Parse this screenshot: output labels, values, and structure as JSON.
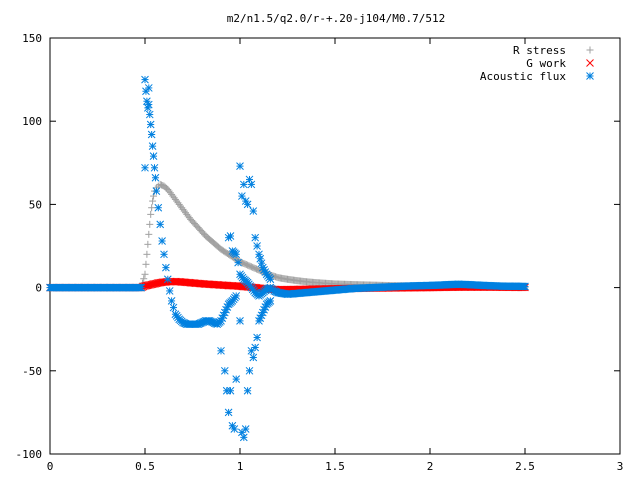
{
  "chart_data": {
    "type": "scatter",
    "title": "m2/n1.5/q2.0/r-+.20-j104/M0.7/512",
    "xlabel": "",
    "ylabel": "",
    "xlim": [
      0,
      3
    ],
    "ylim": [
      -100,
      150
    ],
    "xticks": [
      0,
      0.5,
      1,
      1.5,
      2,
      2.5,
      3
    ],
    "xtick_labels": [
      "0",
      "0.5",
      "1",
      "1.5",
      "2",
      "2.5",
      "3"
    ],
    "yticks": [
      -100,
      -50,
      0,
      50,
      100,
      150
    ],
    "ytick_labels": [
      "-100",
      "-50",
      "0",
      "50",
      "100",
      "150"
    ],
    "grid": false,
    "legend_position": "top-right",
    "series": [
      {
        "name": "R stress",
        "marker": "plus",
        "color": "#a0a0a0",
        "points": [
          [
            0.0,
            0
          ],
          [
            0.1,
            0
          ],
          [
            0.2,
            0
          ],
          [
            0.3,
            0
          ],
          [
            0.4,
            0
          ],
          [
            0.48,
            0
          ],
          [
            0.5,
            8
          ],
          [
            0.505,
            14
          ],
          [
            0.51,
            20
          ],
          [
            0.515,
            26
          ],
          [
            0.52,
            32
          ],
          [
            0.525,
            38
          ],
          [
            0.53,
            44
          ],
          [
            0.535,
            48
          ],
          [
            0.54,
            52
          ],
          [
            0.545,
            55
          ],
          [
            0.55,
            58
          ],
          [
            0.56,
            60
          ],
          [
            0.57,
            61
          ],
          [
            0.58,
            62
          ],
          [
            0.6,
            61
          ],
          [
            0.62,
            59
          ],
          [
            0.64,
            56
          ],
          [
            0.66,
            53
          ],
          [
            0.68,
            50
          ],
          [
            0.7,
            47
          ],
          [
            0.72,
            44
          ],
          [
            0.74,
            41
          ],
          [
            0.76,
            38.5
          ],
          [
            0.78,
            36
          ],
          [
            0.8,
            33.5
          ],
          [
            0.82,
            31
          ],
          [
            0.84,
            29
          ],
          [
            0.86,
            27
          ],
          [
            0.88,
            25
          ],
          [
            0.9,
            23
          ],
          [
            0.92,
            21.5
          ],
          [
            0.94,
            20
          ],
          [
            0.96,
            18.5
          ],
          [
            0.98,
            17
          ],
          [
            1.0,
            15.5
          ],
          [
            1.02,
            14.5
          ],
          [
            1.04,
            13.5
          ],
          [
            1.06,
            12.5
          ],
          [
            1.08,
            11.5
          ],
          [
            1.1,
            10.5
          ],
          [
            1.12,
            9.5
          ],
          [
            1.14,
            8.5
          ],
          [
            1.16,
            7.5
          ],
          [
            1.18,
            6.8
          ],
          [
            1.2,
            6
          ],
          [
            1.25,
            5
          ],
          [
            1.3,
            4.2
          ],
          [
            1.35,
            3.5
          ],
          [
            1.4,
            3
          ],
          [
            1.45,
            2.6
          ],
          [
            1.5,
            2.2
          ],
          [
            1.6,
            1.8
          ],
          [
            1.7,
            1.5
          ],
          [
            1.8,
            1.2
          ],
          [
            1.9,
            1
          ],
          [
            2.0,
            0.8
          ],
          [
            2.1,
            0.6
          ],
          [
            2.2,
            0.5
          ],
          [
            2.3,
            0.4
          ],
          [
            2.4,
            0.3
          ],
          [
            2.5,
            0.2
          ]
        ]
      },
      {
        "name": "G work",
        "marker": "cross",
        "color": "#ff0000",
        "points": [
          [
            0.0,
            0
          ],
          [
            0.1,
            0
          ],
          [
            0.2,
            0
          ],
          [
            0.3,
            0
          ],
          [
            0.4,
            0
          ],
          [
            0.48,
            0
          ],
          [
            0.5,
            1
          ],
          [
            0.52,
            1.5
          ],
          [
            0.54,
            2
          ],
          [
            0.56,
            2.5
          ],
          [
            0.58,
            3
          ],
          [
            0.6,
            3.3
          ],
          [
            0.62,
            3.5
          ],
          [
            0.64,
            3.6
          ],
          [
            0.66,
            3.6
          ],
          [
            0.68,
            3.5
          ],
          [
            0.7,
            3.3
          ],
          [
            0.72,
            3.1
          ],
          [
            0.74,
            2.9
          ],
          [
            0.76,
            2.7
          ],
          [
            0.78,
            2.5
          ],
          [
            0.8,
            2.3
          ],
          [
            0.82,
            2.1
          ],
          [
            0.84,
            2
          ],
          [
            0.86,
            1.8
          ],
          [
            0.88,
            1.7
          ],
          [
            0.9,
            1.5
          ],
          [
            0.92,
            1.4
          ],
          [
            0.94,
            1.2
          ],
          [
            0.96,
            1.1
          ],
          [
            0.98,
            1
          ],
          [
            1.0,
            0.8
          ],
          [
            1.02,
            0.6
          ],
          [
            1.04,
            0.4
          ],
          [
            1.06,
            0.2
          ],
          [
            1.08,
            0
          ],
          [
            1.1,
            -0.3
          ],
          [
            1.12,
            -0.6
          ],
          [
            1.14,
            -0.8
          ],
          [
            1.16,
            -1
          ],
          [
            1.18,
            -1.1
          ],
          [
            1.2,
            -1.2
          ],
          [
            1.25,
            -1.2
          ],
          [
            1.3,
            -1.1
          ],
          [
            1.35,
            -1
          ],
          [
            1.4,
            -0.9
          ],
          [
            1.45,
            -0.8
          ],
          [
            1.5,
            -0.7
          ],
          [
            1.55,
            -0.6
          ],
          [
            1.6,
            -0.5
          ],
          [
            1.65,
            -0.4
          ],
          [
            1.7,
            -0.3
          ],
          [
            1.8,
            -0.2
          ],
          [
            1.9,
            -0.1
          ],
          [
            2.0,
            0
          ],
          [
            2.1,
            0.2
          ],
          [
            2.2,
            0.3
          ],
          [
            2.3,
            0.3
          ],
          [
            2.4,
            0.2
          ],
          [
            2.5,
            0.1
          ]
        ]
      },
      {
        "name": "Acoustic flux",
        "marker": "star",
        "color": "#0080e0",
        "points": [
          [
            0.0,
            0
          ],
          [
            0.1,
            0
          ],
          [
            0.2,
            0
          ],
          [
            0.3,
            0
          ],
          [
            0.4,
            0
          ],
          [
            0.48,
            0
          ],
          [
            0.5,
            125
          ],
          [
            0.505,
            118
          ],
          [
            0.51,
            112
          ],
          [
            0.515,
            108
          ],
          [
            0.52,
            120
          ],
          [
            0.525,
            104
          ],
          [
            0.53,
            98
          ],
          [
            0.535,
            92
          ],
          [
            0.54,
            85
          ],
          [
            0.545,
            79
          ],
          [
            0.55,
            72
          ],
          [
            0.555,
            66
          ],
          [
            0.56,
            58
          ],
          [
            0.57,
            48
          ],
          [
            0.58,
            38
          ],
          [
            0.59,
            28
          ],
          [
            0.6,
            20
          ],
          [
            0.61,
            12
          ],
          [
            0.62,
            5
          ],
          [
            0.63,
            -2
          ],
          [
            0.64,
            -8
          ],
          [
            0.65,
            -12
          ],
          [
            0.66,
            -16
          ],
          [
            0.68,
            -19
          ],
          [
            0.7,
            -21
          ],
          [
            0.72,
            -22
          ],
          [
            0.74,
            -22
          ],
          [
            0.76,
            -22
          ],
          [
            0.78,
            -22
          ],
          [
            0.8,
            -21
          ],
          [
            0.82,
            -20
          ],
          [
            0.84,
            -20
          ],
          [
            0.86,
            -21
          ],
          [
            0.88,
            -22
          ],
          [
            0.9,
            -20
          ],
          [
            0.92,
            -15
          ],
          [
            0.94,
            -10
          ],
          [
            0.96,
            -8
          ],
          [
            0.98,
            -5
          ],
          [
            0.5,
            72
          ],
          [
            0.52,
            110
          ],
          [
            0.9,
            -38
          ],
          [
            0.92,
            -50
          ],
          [
            0.93,
            -62
          ],
          [
            0.94,
            -75
          ],
          [
            0.95,
            -62
          ],
          [
            0.96,
            -83
          ],
          [
            0.97,
            -85
          ],
          [
            0.98,
            -55
          ],
          [
            0.94,
            30
          ],
          [
            0.95,
            31
          ],
          [
            0.96,
            22
          ],
          [
            0.98,
            20
          ],
          [
            0.99,
            15
          ],
          [
            1.0,
            -20
          ],
          [
            1.01,
            -87
          ],
          [
            1.02,
            -90
          ],
          [
            1.03,
            -85
          ],
          [
            1.04,
            -62
          ],
          [
            1.05,
            -50
          ],
          [
            1.06,
            -38
          ],
          [
            1.07,
            -42
          ],
          [
            1.08,
            -36
          ],
          [
            1.09,
            -30
          ],
          [
            1.1,
            -20
          ],
          [
            1.12,
            -15
          ],
          [
            1.14,
            -10
          ],
          [
            1.16,
            -8
          ],
          [
            1.0,
            73
          ],
          [
            1.01,
            55
          ],
          [
            1.02,
            62
          ],
          [
            1.03,
            52
          ],
          [
            1.04,
            50
          ],
          [
            1.05,
            65
          ],
          [
            1.06,
            62
          ],
          [
            1.07,
            46
          ],
          [
            1.08,
            30
          ],
          [
            1.09,
            25
          ],
          [
            1.1,
            20
          ],
          [
            1.12,
            12
          ],
          [
            1.14,
            8
          ],
          [
            1.16,
            5
          ],
          [
            1.0,
            8
          ],
          [
            1.02,
            5
          ],
          [
            1.04,
            3
          ],
          [
            1.06,
            0
          ],
          [
            1.08,
            -3
          ],
          [
            1.1,
            -5
          ],
          [
            1.12,
            -3
          ],
          [
            1.14,
            -1
          ],
          [
            1.16,
            0
          ],
          [
            1.18,
            -2
          ],
          [
            1.2,
            -3
          ],
          [
            1.25,
            -4
          ],
          [
            1.3,
            -3.5
          ],
          [
            1.35,
            -3
          ],
          [
            1.4,
            -2.5
          ],
          [
            1.45,
            -2
          ],
          [
            1.5,
            -1.5
          ],
          [
            1.55,
            -1
          ],
          [
            1.6,
            -0.5
          ],
          [
            1.7,
            0
          ],
          [
            1.8,
            0.5
          ],
          [
            1.9,
            1
          ],
          [
            2.0,
            1.3
          ],
          [
            2.05,
            1.5
          ],
          [
            2.1,
            1.8
          ],
          [
            2.15,
            2
          ],
          [
            2.2,
            1.8
          ],
          [
            2.25,
            1.5
          ],
          [
            2.3,
            1.2
          ],
          [
            2.35,
            1
          ],
          [
            2.4,
            0.8
          ],
          [
            2.45,
            0.8
          ],
          [
            2.5,
            0.7
          ]
        ]
      }
    ]
  }
}
